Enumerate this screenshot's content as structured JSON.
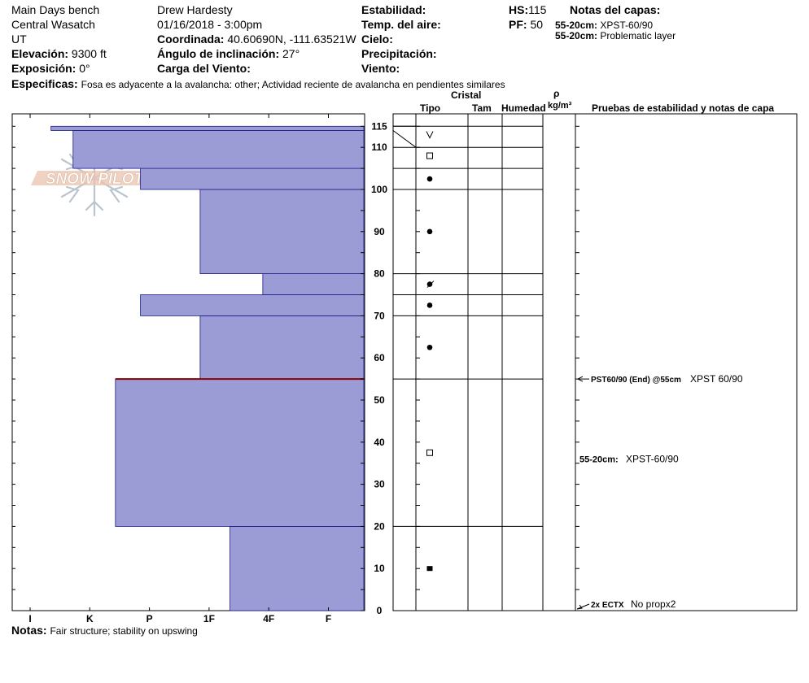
{
  "header": {
    "location_name": "Main Days bench",
    "range": "Central Wasatch",
    "state": "UT",
    "elevation_label": "Elevación:",
    "elevation_value": "9300 ft",
    "exposure_label": "Exposición:",
    "exposure_value": "0°",
    "observer": "Drew Hardesty",
    "datetime": "01/16/2018 - 3:00pm",
    "coord_label": "Coordinada:",
    "coord_value": "40.60690N, -111.63521W",
    "slope_label": "Ángulo de inclinación:",
    "slope_value": "27°",
    "wind_loading_label": "Carga del Viento:",
    "stability_label": "Estabilidad:",
    "air_temp_label": "Temp. del aire:",
    "sky_label": "Cielo:",
    "precip_label": "Precipitación:",
    "wind_label": "Viento:",
    "hs_label": "HS:",
    "hs_value": "115",
    "pf_label": "PF:",
    "pf_value": "50",
    "layer_notes_title": "Notas del capas:",
    "layer_note1_depth": "55-20cm:",
    "layer_note1_text": "XPST-60/90",
    "layer_note2_depth": "55-20cm:",
    "layer_note2_text": "Problematic layer",
    "specifics_label": "Especificas:",
    "specifics_text": "Fosa es adyacente a la avalancha: other; Actividad reciente de avalancha en pendientes similares"
  },
  "logo_text": "SNOW PILOT",
  "columns": {
    "crystal": "Cristal",
    "type": "Tipo",
    "size": "Tam",
    "humidity": "Humedad",
    "rho": "ρ",
    "density_unit": "kg/m³",
    "tests_header": "Pruebas de estabilidad y notas de capa"
  },
  "notes_label": "Notas:",
  "notes_text": "Fair structure; stability on upswing",
  "colors": {
    "hardness_fill": "#9b9bd6",
    "hardness_stroke": "#1a1a8c",
    "weak_layer": "#8b0000"
  },
  "chart_data": {
    "type": "bar",
    "title": "",
    "y_axis_label": "",
    "ylim": [
      0,
      118
    ],
    "y_ticks": [
      0,
      10,
      20,
      30,
      40,
      50,
      60,
      70,
      80,
      90,
      100,
      110,
      115
    ],
    "hardness_scale": [
      "I",
      "K",
      "P",
      "1F",
      "4F",
      "F"
    ],
    "hardness_profile": [
      {
        "from": 0,
        "to": 20,
        "hardness_index": 3.35
      },
      {
        "from": 20,
        "to": 55,
        "hardness_index": 1.43
      },
      {
        "from": 55,
        "to": 70,
        "hardness_index": 2.85
      },
      {
        "from": 70,
        "to": 75,
        "hardness_index": 1.85
      },
      {
        "from": 75,
        "to": 80,
        "hardness_index": 3.9
      },
      {
        "from": 80,
        "to": 100,
        "hardness_index": 2.85
      },
      {
        "from": 100,
        "to": 105,
        "hardness_index": 1.85
      },
      {
        "from": 105,
        "to": 114,
        "hardness_index": 0.72
      },
      {
        "from": 114,
        "to": 115,
        "hardness_index": 0.35
      }
    ],
    "weak_layer_depth": 55,
    "layer_boundaries": [
      0,
      20,
      55,
      70,
      75,
      80,
      100,
      105,
      110,
      115
    ],
    "grain_types": [
      {
        "height": 10,
        "symbol": "filled-square"
      },
      {
        "height": 37.5,
        "symbol": "open-square"
      },
      {
        "height": 62.5,
        "symbol": "dot"
      },
      {
        "height": 72.5,
        "symbol": "dot"
      },
      {
        "height": 77.5,
        "symbol": "dot-slash"
      },
      {
        "height": 90,
        "symbol": "dot"
      },
      {
        "height": 102.5,
        "symbol": "dot"
      },
      {
        "height": 108,
        "symbol": "open-square"
      },
      {
        "height": 113,
        "symbol": "v"
      }
    ],
    "stability_tests": [
      {
        "height": 55,
        "label": "PST60/90 (End) @55cm",
        "result": "XPST 60/90"
      },
      {
        "height": 0,
        "label": "2x ECTX",
        "result": "No propx2"
      }
    ],
    "layer_annotations": [
      {
        "height": 36,
        "label": "55-20cm:",
        "text": "XPST-60/90"
      }
    ]
  }
}
